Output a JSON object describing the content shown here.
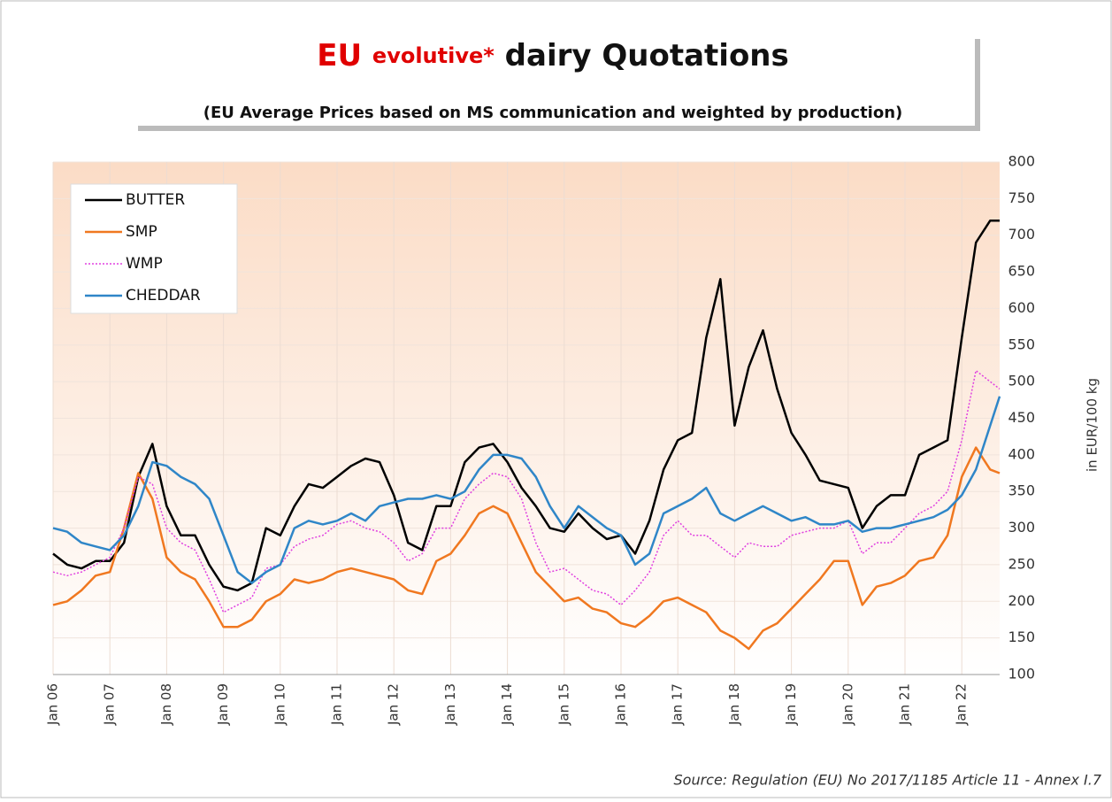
{
  "chart_data": {
    "type": "line",
    "title_parts": [
      "EU",
      "evolutive*",
      "dairy Quotations"
    ],
    "subtitle": "(EU Average Prices based on MS communication and weighted by production)",
    "y_label": "in EUR/100 kg",
    "source": "Source: Regulation (EU) No 2017/1185 Article 11 - Annex I.7",
    "x": [
      "2006-01",
      "2006-04",
      "2006-07",
      "2006-10",
      "2007-01",
      "2007-04",
      "2007-07",
      "2007-10",
      "2008-01",
      "2008-04",
      "2008-07",
      "2008-10",
      "2009-01",
      "2009-04",
      "2009-07",
      "2009-10",
      "2010-01",
      "2010-04",
      "2010-07",
      "2010-10",
      "2011-01",
      "2011-04",
      "2011-07",
      "2011-10",
      "2012-01",
      "2012-04",
      "2012-07",
      "2012-10",
      "2013-01",
      "2013-04",
      "2013-07",
      "2013-10",
      "2014-01",
      "2014-04",
      "2014-07",
      "2014-10",
      "2015-01",
      "2015-04",
      "2015-07",
      "2015-10",
      "2016-01",
      "2016-04",
      "2016-07",
      "2016-10",
      "2017-01",
      "2017-04",
      "2017-07",
      "2017-10",
      "2018-01",
      "2018-04",
      "2018-07",
      "2018-10",
      "2019-01",
      "2019-04",
      "2019-07",
      "2019-10",
      "2020-01",
      "2020-04",
      "2020-07",
      "2020-10",
      "2021-01",
      "2021-04",
      "2021-07",
      "2021-10",
      "2022-01",
      "2022-04",
      "2022-07",
      "2022-09"
    ],
    "series": [
      {
        "name": "BUTTER",
        "color": "#000000",
        "dash": false,
        "values": [
          265,
          250,
          245,
          255,
          255,
          280,
          370,
          415,
          330,
          290,
          290,
          250,
          220,
          215,
          225,
          300,
          290,
          330,
          360,
          355,
          370,
          385,
          395,
          390,
          345,
          280,
          270,
          330,
          330,
          390,
          410,
          415,
          390,
          355,
          330,
          300,
          295,
          320,
          300,
          285,
          290,
          265,
          310,
          380,
          420,
          430,
          560,
          640,
          440,
          520,
          570,
          490,
          430,
          400,
          365,
          360,
          355,
          300,
          330,
          345,
          345,
          400,
          410,
          420,
          560,
          690,
          720,
          720
        ]
      },
      {
        "name": "SMP",
        "color": "#f07820",
        "dash": false,
        "values": [
          195,
          200,
          215,
          235,
          240,
          300,
          375,
          340,
          260,
          240,
          230,
          200,
          165,
          165,
          175,
          200,
          210,
          230,
          225,
          230,
          240,
          245,
          240,
          235,
          230,
          215,
          210,
          255,
          265,
          290,
          320,
          330,
          320,
          280,
          240,
          220,
          200,
          205,
          190,
          185,
          170,
          165,
          180,
          200,
          205,
          195,
          185,
          160,
          150,
          135,
          160,
          170,
          190,
          210,
          230,
          255,
          255,
          195,
          220,
          225,
          235,
          255,
          260,
          290,
          370,
          410,
          380,
          375
        ]
      },
      {
        "name": "WMP",
        "color": "#e040e0",
        "dash": true,
        "values": [
          240,
          235,
          240,
          250,
          260,
          300,
          370,
          360,
          300,
          280,
          270,
          230,
          185,
          195,
          205,
          245,
          250,
          275,
          285,
          290,
          305,
          310,
          300,
          295,
          280,
          255,
          265,
          300,
          300,
          340,
          360,
          375,
          370,
          340,
          280,
          240,
          245,
          230,
          215,
          210,
          195,
          215,
          240,
          290,
          310,
          290,
          290,
          275,
          260,
          280,
          275,
          275,
          290,
          295,
          300,
          300,
          310,
          265,
          280,
          280,
          300,
          320,
          330,
          350,
          420,
          515,
          500,
          490
        ]
      },
      {
        "name": "CHEDDAR",
        "color": "#2f86c8",
        "dash": false,
        "values": [
          300,
          295,
          280,
          275,
          270,
          290,
          330,
          390,
          385,
          370,
          360,
          340,
          290,
          240,
          225,
          240,
          250,
          300,
          310,
          305,
          310,
          320,
          310,
          330,
          335,
          340,
          340,
          345,
          340,
          350,
          380,
          400,
          400,
          395,
          370,
          330,
          300,
          330,
          315,
          300,
          290,
          250,
          265,
          320,
          330,
          340,
          355,
          320,
          310,
          320,
          330,
          320,
          310,
          315,
          305,
          305,
          310,
          295,
          300,
          300,
          305,
          310,
          315,
          325,
          345,
          380,
          440,
          480
        ]
      }
    ],
    "xlim": [
      "2006-01",
      "2022-09"
    ],
    "xticks": [
      {
        "value": "2006-01",
        "label": "Jan 06"
      },
      {
        "value": "2007-01",
        "label": "Jan 07"
      },
      {
        "value": "2008-01",
        "label": "Jan 08"
      },
      {
        "value": "2009-01",
        "label": "Jan 09"
      },
      {
        "value": "2010-01",
        "label": "Jan 10"
      },
      {
        "value": "2011-01",
        "label": "Jan 11"
      },
      {
        "value": "2012-01",
        "label": "Jan 12"
      },
      {
        "value": "2013-01",
        "label": "Jan 13"
      },
      {
        "value": "2014-01",
        "label": "Jan 14"
      },
      {
        "value": "2015-01",
        "label": "Jan 15"
      },
      {
        "value": "2016-01",
        "label": "Jan 16"
      },
      {
        "value": "2017-01",
        "label": "Jan 17"
      },
      {
        "value": "2018-01",
        "label": "Jan 18"
      },
      {
        "value": "2019-01",
        "label": "Jan 19"
      },
      {
        "value": "2020-01",
        "label": "Jan 20"
      },
      {
        "value": "2021-01",
        "label": "Jan 21"
      },
      {
        "value": "2022-01",
        "label": "Jan 22"
      }
    ],
    "ylim": [
      100,
      800
    ],
    "yticks": [
      100,
      150,
      200,
      250,
      300,
      350,
      400,
      450,
      500,
      550,
      600,
      650,
      700,
      750,
      800
    ],
    "grid": true,
    "legend": "upper left"
  }
}
